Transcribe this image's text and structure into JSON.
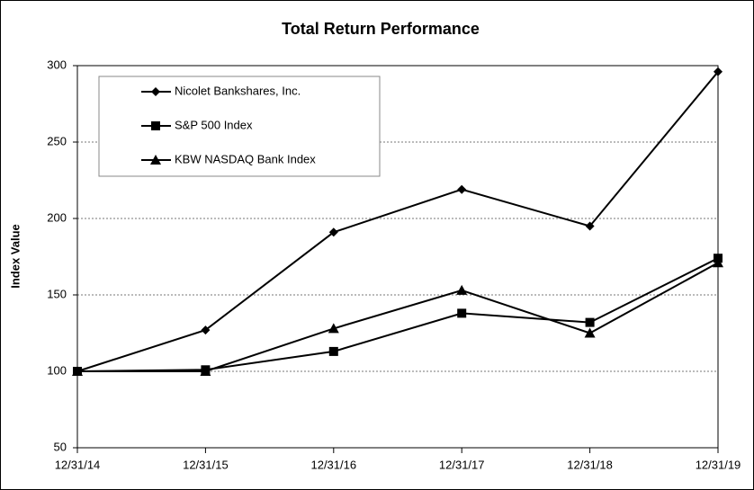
{
  "chart_data": {
    "type": "line",
    "title": "Total Return Performance",
    "y_label": "Index Value",
    "categories": [
      "12/31/14",
      "12/31/15",
      "12/31/16",
      "12/31/17",
      "12/31/18",
      "12/31/19"
    ],
    "series": [
      {
        "name": "Nicolet Bankshares, Inc.",
        "color": "#000000",
        "marker": "diamond",
        "values": [
          100,
          127,
          191,
          219,
          195,
          296
        ]
      },
      {
        "name": "S&P 500 Index",
        "color": "#000000",
        "marker": "square",
        "values": [
          100,
          101,
          113,
          138,
          132,
          174
        ]
      },
      {
        "name": "KBW NASDAQ Bank Index",
        "color": "#000000",
        "marker": "triangle",
        "values": [
          100,
          100,
          128,
          153,
          125,
          171
        ]
      }
    ],
    "ylim": [
      50,
      300
    ],
    "yticks": [
      50,
      100,
      150,
      200,
      250,
      300
    ],
    "grid": true,
    "legend": "upper left"
  }
}
